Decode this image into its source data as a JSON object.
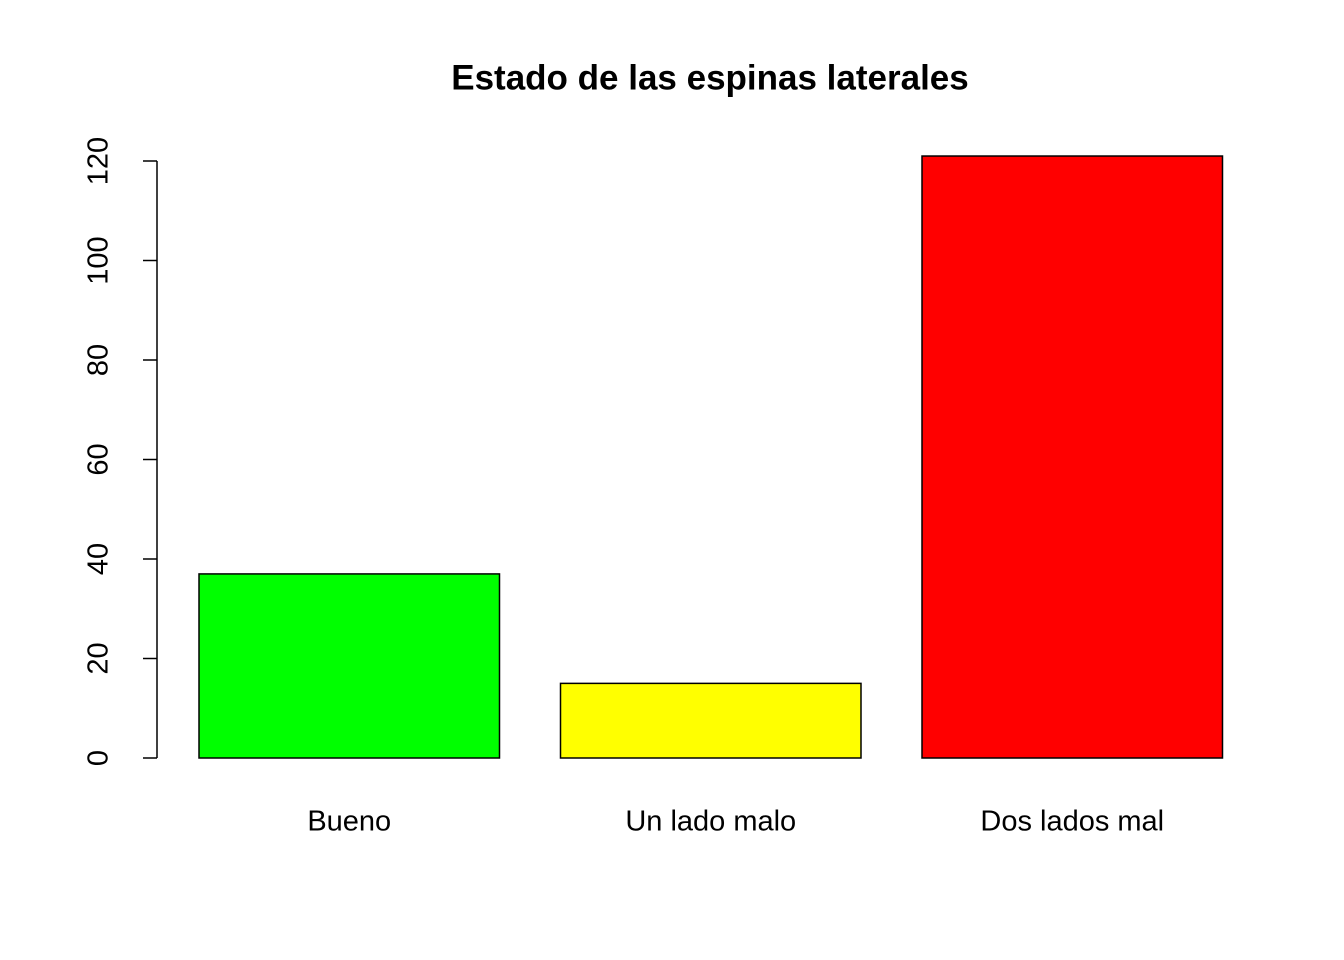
{
  "chart_data": {
    "type": "bar",
    "title": "Estado de las espinas laterales",
    "categories": [
      "Bueno",
      "Un lado malo",
      "Dos lados mal"
    ],
    "values": [
      37,
      15,
      121
    ],
    "colors": [
      "#00ff00",
      "#ffff00",
      "#ff0000"
    ],
    "ylim": [
      0,
      120
    ],
    "yticks": [
      0,
      20,
      40,
      60,
      80,
      100,
      120
    ],
    "grid": false
  }
}
